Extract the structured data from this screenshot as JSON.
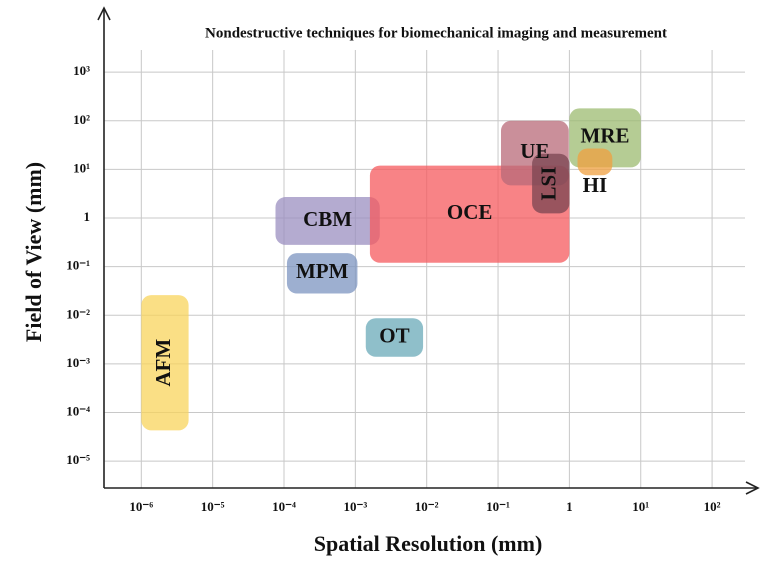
{
  "chart_data": {
    "type": "range",
    "title": "Nondestructive techniques for biomechanical imaging and measurement",
    "x_label": "Spatial Resolution (mm)",
    "y_label": "Field of View (mm)",
    "xscale": "log",
    "yscale": "log",
    "grid": true,
    "xlim": [
      3e-07,
      340
    ],
    "ylim": [
      2.8e-06,
      15000
    ],
    "xticks": [
      {
        "value": 1e-06,
        "label": "10⁻⁶"
      },
      {
        "value": 1e-05,
        "label": "10⁻⁵"
      },
      {
        "value": 0.0001,
        "label": "10⁻⁴"
      },
      {
        "value": 0.001,
        "label": "10⁻³"
      },
      {
        "value": 0.01,
        "label": "10⁻²"
      },
      {
        "value": 0.1,
        "label": "10⁻¹"
      },
      1,
      {
        "value": 10,
        "label": "10¹"
      },
      {
        "value": 100,
        "label": "10²"
      }
    ],
    "yticks": [
      {
        "value": 1e-05,
        "label": "10⁻⁵"
      },
      {
        "value": 0.0001,
        "label": "10⁻⁴"
      },
      {
        "value": 0.001,
        "label": "10⁻³"
      },
      {
        "value": 0.01,
        "label": "10⁻²"
      },
      {
        "value": 0.1,
        "label": "10⁻¹"
      },
      1,
      {
        "value": 10,
        "label": "10¹"
      },
      {
        "value": 100,
        "label": "10²"
      },
      {
        "value": 1000,
        "label": "10³"
      }
    ],
    "series": [
      {
        "name": "AFM",
        "color": "#f8d45c",
        "x": [
          1e-06,
          4.6e-06
        ],
        "y": [
          4.3e-05,
          0.026
        ]
      },
      {
        "name": "OT",
        "color": "#6aaab8",
        "x": [
          0.0014,
          0.0089
        ],
        "y": [
          0.0014,
          0.0087
        ]
      },
      {
        "name": "MPM",
        "color": "#7c94c0",
        "x": [
          0.00011,
          0.00107
        ],
        "y": [
          0.028,
          0.19
        ]
      },
      {
        "name": "CBM",
        "color": "#9b8fc0",
        "x": [
          7.6e-05,
          0.0022
        ],
        "y": [
          0.28,
          2.7
        ]
      },
      {
        "name": "OCE",
        "color": "#f55a5e",
        "x": [
          0.0016,
          1
        ],
        "y": [
          0.12,
          12
        ]
      },
      {
        "name": "UE",
        "color": "#b86a78",
        "x": [
          0.11,
          0.98
        ],
        "y": [
          4.7,
          100
        ]
      },
      {
        "name": "LSI",
        "color": "#7a4450",
        "x": [
          0.3,
          1
        ],
        "y": [
          1.25,
          21
        ]
      },
      {
        "name": "MRE",
        "color": "#9cbb70",
        "x": [
          1,
          10
        ],
        "y": [
          11,
          180
        ]
      },
      {
        "name": "HI",
        "color": "#f0a040",
        "x": [
          1.3,
          4
        ],
        "y": [
          7.6,
          27
        ]
      }
    ]
  }
}
